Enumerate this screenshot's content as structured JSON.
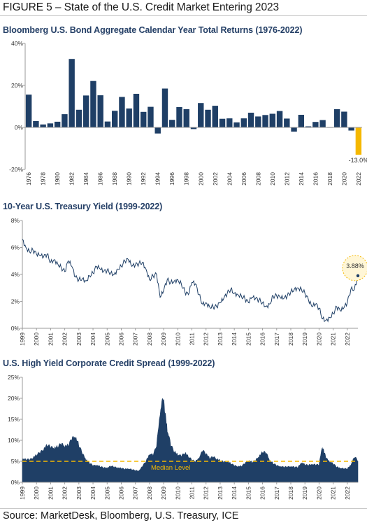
{
  "figure_title": "FIGURE 5 – State of the U.S. Credit Market Entering 2023",
  "source": "Source: MarketDesk, Bloomberg, U.S. Treasury, ICE",
  "colors": {
    "navy": "#1f3f66",
    "highlight": "#f5b800",
    "axis": "#9a9a9a"
  },
  "chart_data": [
    {
      "type": "bar",
      "title": "Bloomberg U.S. Bond Aggregate Calendar Year Total Returns (1976-2022)",
      "categories": [
        1976,
        1977,
        1978,
        1979,
        1980,
        1981,
        1982,
        1983,
        1984,
        1985,
        1986,
        1987,
        1988,
        1989,
        1990,
        1991,
        1992,
        1993,
        1994,
        1995,
        1996,
        1997,
        1998,
        1999,
        2000,
        2001,
        2002,
        2003,
        2004,
        2005,
        2006,
        2007,
        2008,
        2009,
        2010,
        2011,
        2012,
        2013,
        2014,
        2015,
        2016,
        2017,
        2018,
        2019,
        2020,
        2021,
        2022
      ],
      "tick_labels": [
        "1976",
        "1978",
        "1980",
        "1982",
        "1984",
        "1986",
        "1988",
        "1990",
        "1992",
        "1994",
        "1996",
        "1998",
        "2000",
        "2002",
        "2004",
        "2006",
        "2008",
        "2010",
        "2012",
        "2014",
        "2016",
        "2018",
        "2020",
        "2022"
      ],
      "values": [
        15.6,
        3.0,
        1.4,
        1.9,
        2.7,
        6.3,
        32.6,
        8.4,
        15.2,
        22.1,
        15.3,
        2.8,
        7.9,
        14.5,
        9.0,
        16.0,
        7.4,
        9.8,
        -2.9,
        18.5,
        3.6,
        9.7,
        8.7,
        -0.8,
        11.6,
        8.4,
        10.3,
        4.1,
        4.3,
        2.4,
        4.3,
        7.0,
        5.2,
        5.9,
        6.5,
        7.8,
        4.2,
        -2.0,
        6.0,
        0.5,
        2.6,
        3.5,
        0.0,
        8.7,
        7.5,
        -1.5,
        -13.0
      ],
      "highlight_index": 46,
      "data_label": "-13.0%",
      "yticks": [
        "40%",
        "20%",
        "0%",
        "-20%"
      ],
      "ytick_values": [
        40,
        20,
        0,
        -20
      ],
      "ylim": [
        -20,
        40
      ]
    },
    {
      "type": "line",
      "title": "10-Year U.S. Treasury Yield (1999-2022)",
      "x": [
        1999.0,
        1999.25,
        1999.5,
        1999.75,
        2000.0,
        2000.25,
        2000.5,
        2000.75,
        2001.0,
        2001.25,
        2001.5,
        2001.75,
        2002.0,
        2002.25,
        2002.5,
        2002.75,
        2003.0,
        2003.25,
        2003.5,
        2003.75,
        2004.0,
        2004.25,
        2004.5,
        2004.75,
        2005.0,
        2005.25,
        2005.5,
        2005.75,
        2006.0,
        2006.25,
        2006.5,
        2006.75,
        2007.0,
        2007.25,
        2007.5,
        2007.75,
        2008.0,
        2008.25,
        2008.5,
        2008.75,
        2009.0,
        2009.25,
        2009.5,
        2009.75,
        2010.0,
        2010.25,
        2010.5,
        2010.75,
        2011.0,
        2011.25,
        2011.5,
        2011.75,
        2012.0,
        2012.25,
        2012.5,
        2012.75,
        2013.0,
        2013.25,
        2013.5,
        2013.75,
        2014.0,
        2014.25,
        2014.5,
        2014.75,
        2015.0,
        2015.25,
        2015.5,
        2015.75,
        2016.0,
        2016.25,
        2016.5,
        2016.75,
        2017.0,
        2017.25,
        2017.5,
        2017.75,
        2018.0,
        2018.25,
        2018.5,
        2018.75,
        2019.0,
        2019.25,
        2019.5,
        2019.75,
        2020.0,
        2020.25,
        2020.5,
        2020.75,
        2021.0,
        2021.25,
        2021.5,
        2021.75,
        2022.0,
        2022.25,
        2022.5,
        2022.75
      ],
      "values": [
        6.6,
        6.0,
        5.7,
        5.8,
        5.5,
        5.4,
        5.3,
        5.5,
        4.9,
        5.1,
        4.8,
        4.5,
        4.2,
        5.0,
        4.6,
        3.8,
        3.6,
        3.7,
        3.5,
        3.9,
        4.1,
        4.6,
        4.4,
        4.2,
        4.3,
        4.1,
        4.0,
        4.4,
        4.6,
        5.0,
        5.1,
        4.6,
        4.7,
        4.8,
        4.9,
        4.4,
        3.6,
        3.9,
        4.0,
        2.3,
        2.8,
        3.6,
        3.4,
        3.5,
        3.6,
        3.3,
        2.7,
        2.5,
        3.4,
        3.3,
        2.5,
        1.8,
        1.9,
        1.6,
        1.6,
        1.6,
        1.9,
        2.2,
        2.6,
        2.9,
        2.6,
        2.5,
        2.4,
        2.2,
        1.9,
        2.3,
        2.2,
        2.1,
        1.9,
        1.6,
        1.8,
        2.4,
        2.4,
        2.3,
        2.2,
        2.4,
        2.7,
        2.9,
        3.0,
        2.9,
        2.6,
        2.1,
        1.6,
        1.8,
        1.5,
        0.7,
        0.6,
        0.8,
        1.1,
        1.6,
        1.3,
        1.5,
        1.9,
        2.9,
        2.9,
        3.9
      ],
      "end_label": "3.88%",
      "xtick_labels": [
        "1999",
        "2000",
        "2001",
        "2002",
        "2003",
        "2004",
        "2005",
        "2006",
        "2007",
        "2008",
        "2009",
        "2010",
        "2011",
        "2012",
        "2013",
        "2014",
        "2015",
        "2016",
        "2017",
        "2018",
        "2019",
        "2020",
        "2021",
        "2022"
      ],
      "yticks": [
        "8%",
        "6%",
        "4%",
        "2%",
        "0%"
      ],
      "ytick_values": [
        8,
        6,
        4,
        2,
        0
      ],
      "ylim": [
        0,
        8
      ]
    },
    {
      "type": "area",
      "title": "U.S. High Yield Corporate Credit Spread (1999-2022)",
      "x": [
        1999.0,
        1999.25,
        1999.5,
        1999.75,
        2000.0,
        2000.25,
        2000.5,
        2000.75,
        2001.0,
        2001.25,
        2001.5,
        2001.75,
        2002.0,
        2002.25,
        2002.5,
        2002.75,
        2003.0,
        2003.25,
        2003.5,
        2003.75,
        2004.0,
        2004.25,
        2004.5,
        2004.75,
        2005.0,
        2005.25,
        2005.5,
        2005.75,
        2006.0,
        2006.25,
        2006.5,
        2006.75,
        2007.0,
        2007.25,
        2007.5,
        2007.75,
        2008.0,
        2008.25,
        2008.5,
        2008.75,
        2008.95,
        2009.1,
        2009.25,
        2009.5,
        2009.75,
        2010.0,
        2010.25,
        2010.5,
        2010.75,
        2011.0,
        2011.25,
        2011.5,
        2011.75,
        2012.0,
        2012.25,
        2012.5,
        2012.75,
        2013.0,
        2013.25,
        2013.5,
        2013.75,
        2014.0,
        2014.25,
        2014.5,
        2014.75,
        2015.0,
        2015.25,
        2015.5,
        2015.75,
        2016.0,
        2016.25,
        2016.5,
        2016.75,
        2017.0,
        2017.25,
        2017.5,
        2017.75,
        2018.0,
        2018.25,
        2018.5,
        2018.75,
        2019.0,
        2019.25,
        2019.5,
        2019.75,
        2020.0,
        2020.2,
        2020.35,
        2020.5,
        2020.75,
        2021.0,
        2021.25,
        2021.5,
        2021.75,
        2022.0,
        2022.25,
        2022.5,
        2022.75
      ],
      "values": [
        5.2,
        5.3,
        5.1,
        5.6,
        6.3,
        6.8,
        7.5,
        8.6,
        8.0,
        7.8,
        8.2,
        8.8,
        8.2,
        8.5,
        10.0,
        10.4,
        8.5,
        6.5,
        5.2,
        4.4,
        3.8,
        3.9,
        3.6,
        3.3,
        3.3,
        3.7,
        3.5,
        3.3,
        3.2,
        3.0,
        3.1,
        2.9,
        2.7,
        2.6,
        3.7,
        4.8,
        6.5,
        6.2,
        8.5,
        16.0,
        19.5,
        16.0,
        12.0,
        8.5,
        7.0,
        6.3,
        6.0,
        6.7,
        5.9,
        5.0,
        4.8,
        5.5,
        7.3,
        6.5,
        5.5,
        5.8,
        5.3,
        5.0,
        4.6,
        4.7,
        4.3,
        3.8,
        3.6,
        3.7,
        4.3,
        4.9,
        4.6,
        5.0,
        5.9,
        7.0,
        6.7,
        5.0,
        4.3,
        3.8,
        3.6,
        3.5,
        3.5,
        3.6,
        3.5,
        3.4,
        4.5,
        4.0,
        3.9,
        4.1,
        4.0,
        4.0,
        8.0,
        7.0,
        5.5,
        4.7,
        4.2,
        3.5,
        3.2,
        3.1,
        3.1,
        4.0,
        5.8,
        5.0
      ],
      "median_level": 5.0,
      "median_label": "Median Level",
      "xtick_labels": [
        "1999",
        "2000",
        "2001",
        "2002",
        "2003",
        "2004",
        "2005",
        "2006",
        "2007",
        "2008",
        "2009",
        "2010",
        "2011",
        "2012",
        "2013",
        "2014",
        "2015",
        "2016",
        "2017",
        "2018",
        "2019",
        "2020",
        "2021",
        "2022"
      ],
      "yticks": [
        "25%",
        "20%",
        "15%",
        "10%",
        "5%",
        "0%"
      ],
      "ytick_values": [
        25,
        20,
        15,
        10,
        5,
        0
      ],
      "ylim": [
        0,
        25
      ]
    }
  ]
}
